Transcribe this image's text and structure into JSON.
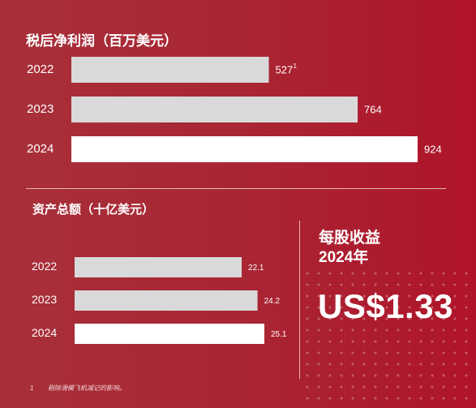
{
  "net_profit": {
    "title": "税后净利润（百万美元）",
    "footnote_marker": "1"
  },
  "total_assets": {
    "title": "资产总额（十亿美元）"
  },
  "eps": {
    "title_line1": "每股收益",
    "title_line2": "2024年",
    "value": "US$1.33"
  },
  "footnote": {
    "marker": "1",
    "text": "剔除滑模飞机减记的影响。"
  },
  "colors": {
    "bar_prior": "#d9d9d9",
    "bar_current": "#ffffff",
    "background": "#a92634"
  },
  "chart_data": [
    {
      "type": "bar",
      "orientation": "horizontal",
      "title": "税后净利润（百万美元）",
      "categories": [
        "2022",
        "2023",
        "2024"
      ],
      "values": [
        527,
        764,
        924
      ],
      "value_labels": [
        "527",
        "764",
        "924"
      ],
      "xlim": [
        0,
        924
      ]
    },
    {
      "type": "bar",
      "orientation": "horizontal",
      "title": "资产总额（十亿美元）",
      "categories": [
        "2022",
        "2023",
        "2024"
      ],
      "values": [
        22.1,
        24.2,
        25.1
      ],
      "value_labels": [
        "22.1",
        "24.2",
        "25.1"
      ],
      "xlim": [
        0,
        25.1
      ]
    }
  ]
}
